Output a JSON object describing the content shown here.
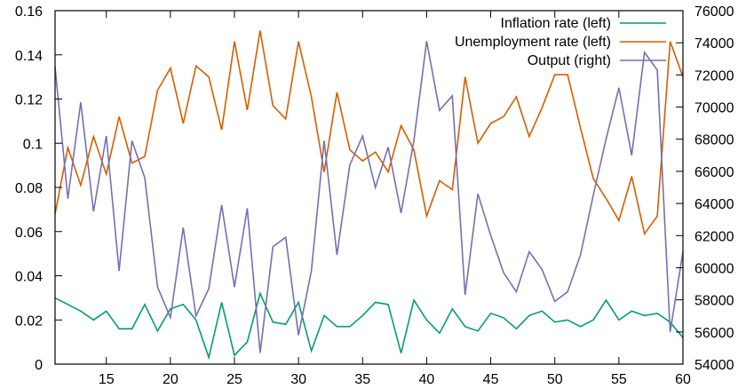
{
  "chart_data": {
    "type": "line",
    "title": "",
    "xlabel": "",
    "ylabel_left": "",
    "ylabel_right": "",
    "xlim": [
      11,
      60
    ],
    "ylim_left": [
      0,
      0.16
    ],
    "ylim_right": [
      54000,
      76000
    ],
    "grid": false,
    "legend_position": "top-right",
    "x_ticks": [
      15,
      20,
      25,
      30,
      35,
      40,
      45,
      50,
      55,
      60
    ],
    "y_left_ticks": [
      "0",
      "0.02",
      "0.04",
      "0.06",
      "0.08",
      "0.1",
      "0.12",
      "0.14",
      "0.16"
    ],
    "y_left_tick_values": [
      0,
      0.02,
      0.04,
      0.06,
      0.08,
      0.1,
      0.12,
      0.14,
      0.16
    ],
    "y_right_ticks": [
      "54000",
      "56000",
      "58000",
      "60000",
      "62000",
      "64000",
      "66000",
      "68000",
      "70000",
      "72000",
      "74000",
      "76000"
    ],
    "y_right_tick_values": [
      54000,
      56000,
      58000,
      60000,
      62000,
      64000,
      66000,
      68000,
      70000,
      72000,
      74000,
      76000
    ],
    "x": [
      11,
      12,
      13,
      14,
      15,
      16,
      17,
      18,
      19,
      20,
      21,
      22,
      23,
      24,
      25,
      26,
      27,
      28,
      29,
      30,
      31,
      32,
      33,
      34,
      35,
      36,
      37,
      38,
      39,
      40,
      41,
      42,
      43,
      44,
      45,
      46,
      47,
      48,
      49,
      50,
      51,
      52,
      53,
      54,
      55,
      56,
      57,
      58,
      59,
      60
    ],
    "series": [
      {
        "name": "Inflation rate (left)",
        "axis": "left",
        "color": "#009e73",
        "values": [
          0.03,
          0.027,
          0.024,
          0.02,
          0.024,
          0.016,
          0.016,
          0.027,
          0.015,
          0.025,
          0.027,
          0.02,
          0.003,
          0.028,
          0.004,
          0.01,
          0.032,
          0.019,
          0.018,
          0.028,
          0.006,
          0.022,
          0.017,
          0.017,
          0.022,
          0.028,
          0.027,
          0.005,
          0.029,
          0.02,
          0.014,
          0.025,
          0.017,
          0.015,
          0.023,
          0.021,
          0.016,
          0.022,
          0.024,
          0.019,
          0.02,
          0.017,
          0.02,
          0.029,
          0.02,
          0.024,
          0.022,
          0.023,
          0.019,
          0.012
        ]
      },
      {
        "name": "Unemployment rate (left)",
        "axis": "left",
        "color": "#d55e00",
        "values": [
          0.068,
          0.098,
          0.081,
          0.103,
          0.086,
          0.112,
          0.091,
          0.094,
          0.124,
          0.134,
          0.109,
          0.135,
          0.13,
          0.106,
          0.146,
          0.115,
          0.151,
          0.117,
          0.111,
          0.146,
          0.121,
          0.087,
          0.123,
          0.097,
          0.092,
          0.096,
          0.087,
          0.108,
          0.097,
          0.067,
          0.083,
          0.079,
          0.13,
          0.1,
          0.109,
          0.112,
          0.121,
          0.103,
          0.116,
          0.131,
          0.131,
          0.107,
          0.084,
          0.075,
          0.065,
          0.085,
          0.059,
          0.067,
          0.146,
          0.13
        ]
      },
      {
        "name": "Output (right)",
        "axis": "right",
        "color": "#7570b3",
        "values": [
          72500,
          64300,
          70300,
          63500,
          68200,
          59800,
          67900,
          65600,
          58800,
          56900,
          62500,
          57000,
          58700,
          63900,
          58800,
          63700,
          54700,
          61300,
          61900,
          55800,
          59800,
          67900,
          60800,
          66400,
          68200,
          65000,
          67500,
          63400,
          67900,
          74100,
          69800,
          70700,
          58300,
          64600,
          62000,
          59700,
          58500,
          61000,
          59900,
          57900,
          58500,
          60800,
          64500,
          68000,
          71200,
          67000,
          73400,
          72300,
          56000,
          61000
        ]
      }
    ]
  }
}
